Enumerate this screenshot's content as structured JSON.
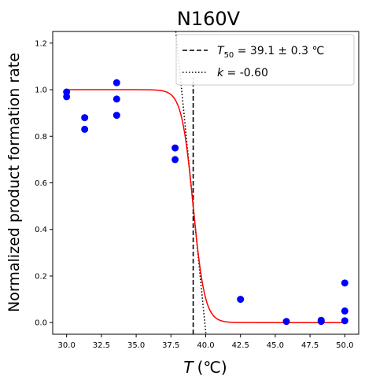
{
  "chart_data": {
    "type": "scatter",
    "title": "N160V",
    "xlabel_var": "T",
    "xlabel_unit": "(℃)",
    "ylabel": "Normalized product formation rate",
    "xlim": [
      29.0,
      51.0
    ],
    "ylim": [
      -0.05,
      1.25
    ],
    "xticks": [
      30.0,
      32.5,
      35.0,
      37.5,
      40.0,
      42.5,
      45.0,
      47.5,
      50.0
    ],
    "xtick_labels": [
      "30.0",
      "32.5",
      "35.0",
      "37.5",
      "40.0",
      "42.5",
      "45.0",
      "47.5",
      "50.0"
    ],
    "yticks": [
      0.0,
      0.2,
      0.4,
      0.6,
      0.8,
      1.0,
      1.2
    ],
    "ytick_labels": [
      "0.0",
      "0.2",
      "0.4",
      "0.6",
      "0.8",
      "1.0",
      "1.2"
    ],
    "grid": false,
    "legend_position": "top-right",
    "points": {
      "name": "measurements",
      "color": "#0000ff",
      "x": [
        30.0,
        30.0,
        31.3,
        31.3,
        33.6,
        33.6,
        33.6,
        37.8,
        37.8,
        42.5,
        45.8,
        48.3,
        48.3,
        50.0,
        50.0,
        50.0
      ],
      "y": [
        0.99,
        0.97,
        0.88,
        0.83,
        1.03,
        0.96,
        0.89,
        0.75,
        0.7,
        0.1,
        0.005,
        0.01,
        0.005,
        0.17,
        0.05,
        0.008
      ]
    },
    "fit": {
      "color": "#ff0000",
      "model": "sigmoid",
      "T50": 39.1,
      "k": -0.6,
      "x_range": [
        30.0,
        50.0
      ]
    },
    "legend": [
      {
        "style": "dashed",
        "var": "T",
        "sub": "50",
        "text": " = 39.1 ± 0.3 ℃",
        "x": 39.1,
        "y_range": [
          -0.05,
          1.05
        ]
      },
      {
        "style": "dotted",
        "var": "k",
        "text": " = -0.60",
        "slope": -0.6,
        "through": [
          39.1,
          0.5
        ]
      }
    ]
  }
}
